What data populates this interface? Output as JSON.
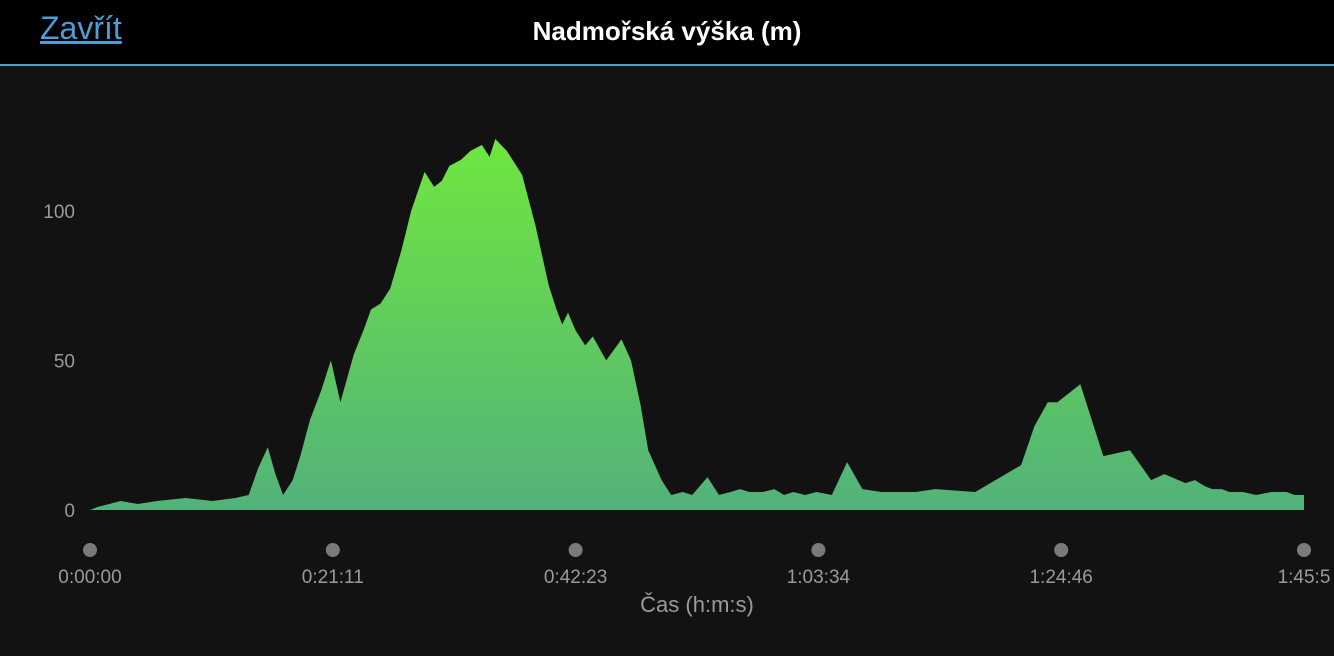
{
  "header": {
    "close_label": "Zavřít",
    "title": "Nadmořská výška (m)"
  },
  "colors": {
    "background": "#121212",
    "header_background": "#000000",
    "accent": "#4a9fd8",
    "area_top": "#6fe63f",
    "area_bottom": "#52b27a",
    "marker": "#7a7a7a"
  },
  "chart_data": {
    "type": "area",
    "title": "Nadmořská výška (m)",
    "xlabel": "Čas (h:m:s)",
    "ylabel": "",
    "ylim": [
      0,
      127
    ],
    "yticks": [
      0,
      50,
      100
    ],
    "xlim_seconds": [
      0,
      6350
    ],
    "xticks": [
      "0:00:00",
      "0:21:11",
      "0:42:23",
      "1:03:34",
      "1:24:46",
      "1:45:5"
    ],
    "grid": false,
    "series": [
      {
        "x_seconds": [
          0,
          40,
          160,
          250,
          350,
          500,
          640,
          760,
          830,
          880,
          930,
          970,
          1010,
          1060,
          1100,
          1150,
          1210,
          1260,
          1310,
          1380,
          1430,
          1470,
          1520,
          1570,
          1630,
          1680,
          1750,
          1800,
          1840,
          1880,
          1940,
          1990,
          2050,
          2090,
          2120,
          2180,
          2260,
          2330,
          2400,
          2440,
          2470,
          2500,
          2540,
          2590,
          2630,
          2700,
          2780,
          2830,
          2880,
          2920,
          2990,
          3040,
          3100,
          3150,
          3230,
          3290,
          3350,
          3400,
          3450,
          3520,
          3580,
          3630,
          3680,
          3740,
          3800,
          3880,
          3960,
          4040,
          4140,
          4320,
          4420,
          4630,
          4870,
          4940,
          5010,
          5060,
          5180,
          5300,
          5440,
          5550,
          5620,
          5730,
          5780,
          5830,
          5870,
          5920,
          5960,
          6030,
          6100,
          6180,
          6260,
          6300,
          6350
        ],
        "y": [
          0,
          1,
          3,
          2,
          3,
          4,
          3,
          4,
          5,
          14,
          21,
          12,
          5,
          10,
          18,
          30,
          40,
          50,
          36,
          52,
          60,
          67,
          69,
          74,
          87,
          100,
          113,
          108,
          110,
          115,
          117,
          120,
          122,
          118,
          124,
          120,
          112,
          95,
          75,
          67,
          62,
          66,
          60,
          55,
          58,
          50,
          57,
          50,
          35,
          20,
          10,
          5,
          6,
          5,
          11,
          5,
          6,
          7,
          6,
          6,
          7,
          5,
          6,
          5,
          6,
          5,
          16,
          7,
          6,
          6,
          7,
          6,
          15,
          28,
          36,
          36,
          42,
          18,
          20,
          10,
          12,
          9,
          10,
          8,
          7,
          7,
          6,
          6,
          5,
          6,
          6,
          5,
          5
        ]
      }
    ]
  }
}
